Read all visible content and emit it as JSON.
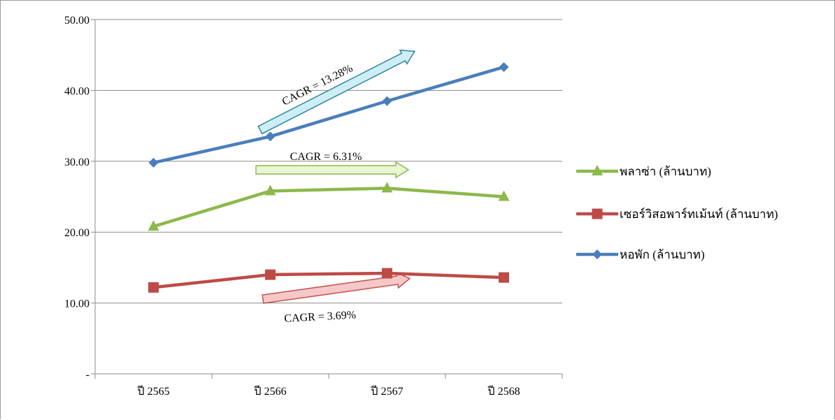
{
  "chart_data": {
    "type": "line",
    "categories": [
      "ปี 2565",
      "ปี 2566",
      "ปี 2567",
      "ปี 2568"
    ],
    "ylim": [
      0,
      50
    ],
    "y_ticks": [
      {
        "value": 0,
        "label": "-"
      },
      {
        "value": 10,
        "label": "10.00"
      },
      {
        "value": 20,
        "label": "20.00"
      },
      {
        "value": 30,
        "label": "30.00"
      },
      {
        "value": 40,
        "label": "40.00"
      },
      {
        "value": 50,
        "label": "50.00"
      }
    ],
    "grid": true,
    "legend_position": "right",
    "series": [
      {
        "name": "พลาซ่า (ล้านบาท)",
        "color": "#8db84b",
        "marker": "triangle",
        "values": [
          20.8,
          25.8,
          26.2,
          25.0
        ]
      },
      {
        "name": "เซอร์วิสอพาร์ทเม้นท์ (ล้านบาท)",
        "color": "#be4b48",
        "marker": "square",
        "values": [
          12.2,
          14.0,
          14.2,
          13.6
        ]
      },
      {
        "name": "หอพัก (ล้านบาท)",
        "color": "#4a7ebb",
        "marker": "diamond",
        "values": [
          29.8,
          33.5,
          38.5,
          43.3
        ]
      }
    ],
    "annotations": [
      {
        "text": "CAGR = 13.28%",
        "series": "หอพัก (ล้านบาท)",
        "fill": "#cdeef6",
        "stroke": "#31859c"
      },
      {
        "text": "CAGR = 6.31%",
        "series": "พลาซ่า (ล้านบาท)",
        "fill": "#ebf5d4",
        "stroke": "#8db84b"
      },
      {
        "text": "CAGR = 3.69%",
        "series": "เซอร์วิสอพาร์ทเม้นท์ (ล้านบาท)",
        "fill": "#f6c8c8",
        "stroke": "#c0504d"
      }
    ]
  }
}
